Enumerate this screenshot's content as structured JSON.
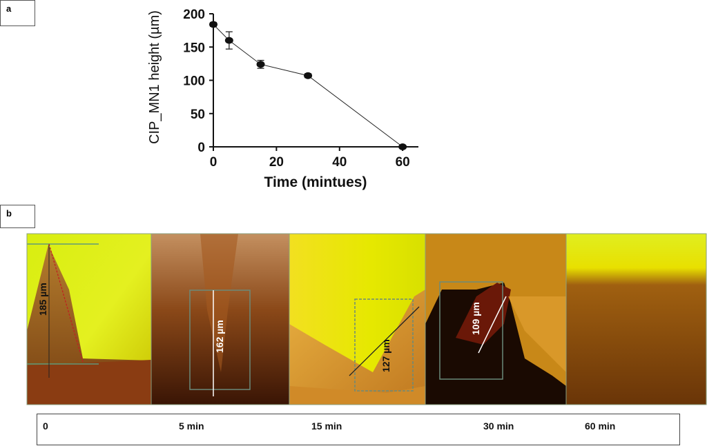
{
  "panel_labels": {
    "a": "a",
    "b": "b"
  },
  "chart_data": {
    "type": "line",
    "xlabel": "Time (mintues)",
    "ylabel": "CIP_MN1 height (µm)",
    "xlim": [
      0,
      65
    ],
    "ylim": [
      0,
      200
    ],
    "xticks": [
      0,
      20,
      40,
      60
    ],
    "yticks": [
      0,
      50,
      100,
      150,
      200
    ],
    "x": [
      0,
      5,
      15,
      30,
      60
    ],
    "series": [
      {
        "values": [
          184,
          160,
          124,
          107,
          0
        ],
        "errors": [
          3,
          13,
          6,
          3,
          0
        ]
      }
    ],
    "grid": false
  },
  "micrographs": [
    {
      "measurement": "185 µm",
      "time": "0"
    },
    {
      "measurement": "162 µm",
      "time": "5 min"
    },
    {
      "measurement": "127 µm",
      "time": "15 min"
    },
    {
      "measurement": "109 µm",
      "time": "30 min"
    },
    {
      "measurement": "",
      "time": "60 min"
    }
  ],
  "colors": {
    "yellow": "#e8f000",
    "orange": "#c08020",
    "dark_brown": "#3a1505",
    "line": "#111111"
  }
}
